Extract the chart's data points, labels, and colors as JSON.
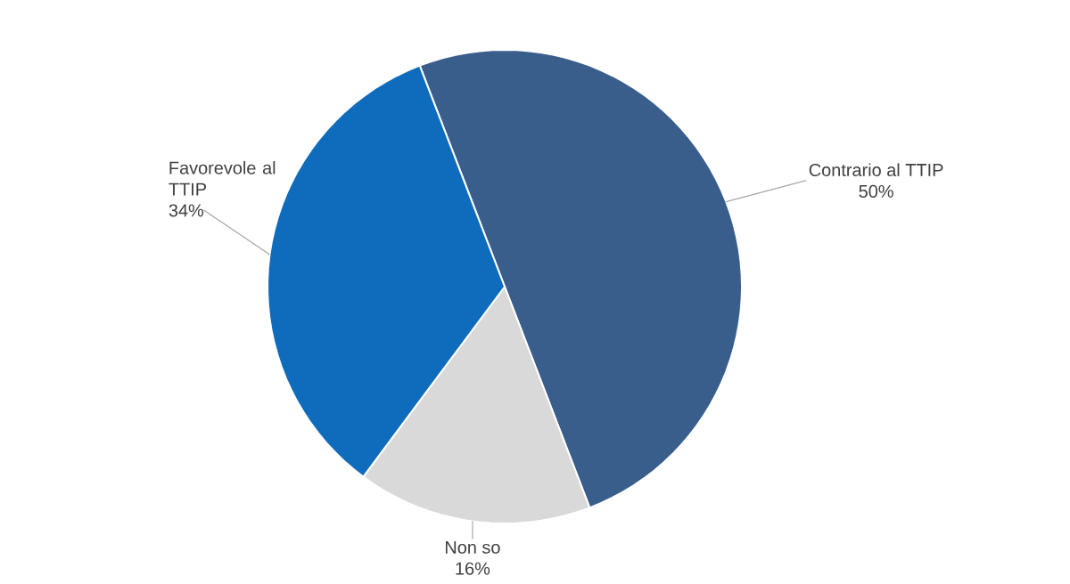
{
  "chart_data": {
    "type": "pie",
    "categories": [
      "Contrario al TTIP",
      "Non so",
      "Favorevole al TTIP"
    ],
    "values": [
      50,
      16,
      34
    ],
    "value_labels": [
      "50%",
      "16%",
      "34%"
    ],
    "colors": [
      "#3a5e8c",
      "#d9d9d9",
      "#0f6cbd"
    ]
  }
}
